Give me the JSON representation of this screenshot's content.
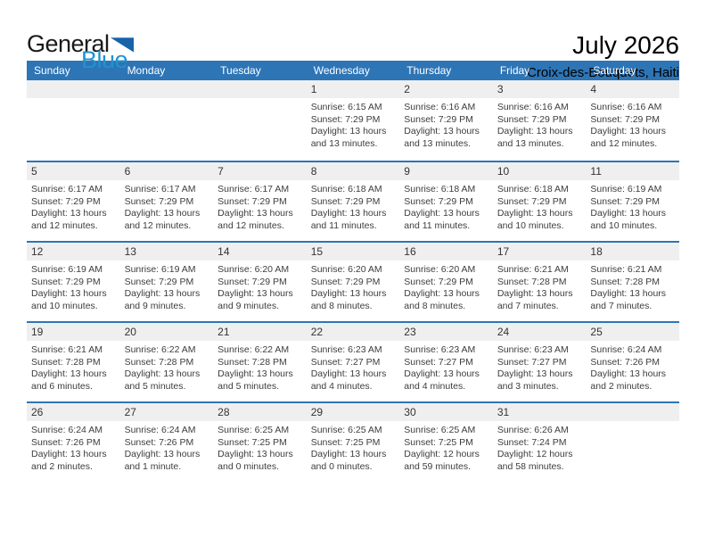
{
  "logo": {
    "part1": "General",
    "part2": "Blue",
    "triangle_icon": "flag-triangle"
  },
  "header": {
    "title": "July 2026",
    "subtitle": "Croix-des-Bouquets, Haiti"
  },
  "colors": {
    "header_blue": "#2E75B6",
    "band_gray": "#EFEFEF",
    "logo_blue": "#2191D0",
    "logo_triangle": "#1763A8"
  },
  "calendar": {
    "day_headers": [
      "Sunday",
      "Monday",
      "Tuesday",
      "Wednesday",
      "Thursday",
      "Friday",
      "Saturday"
    ],
    "weeks": [
      [
        null,
        null,
        null,
        {
          "n": "1",
          "sunrise": "Sunrise: 6:15 AM",
          "sunset": "Sunset: 7:29 PM",
          "daylight1": "Daylight: 13 hours",
          "daylight2": "and 13 minutes."
        },
        {
          "n": "2",
          "sunrise": "Sunrise: 6:16 AM",
          "sunset": "Sunset: 7:29 PM",
          "daylight1": "Daylight: 13 hours",
          "daylight2": "and 13 minutes."
        },
        {
          "n": "3",
          "sunrise": "Sunrise: 6:16 AM",
          "sunset": "Sunset: 7:29 PM",
          "daylight1": "Daylight: 13 hours",
          "daylight2": "and 13 minutes."
        },
        {
          "n": "4",
          "sunrise": "Sunrise: 6:16 AM",
          "sunset": "Sunset: 7:29 PM",
          "daylight1": "Daylight: 13 hours",
          "daylight2": "and 12 minutes."
        }
      ],
      [
        {
          "n": "5",
          "sunrise": "Sunrise: 6:17 AM",
          "sunset": "Sunset: 7:29 PM",
          "daylight1": "Daylight: 13 hours",
          "daylight2": "and 12 minutes."
        },
        {
          "n": "6",
          "sunrise": "Sunrise: 6:17 AM",
          "sunset": "Sunset: 7:29 PM",
          "daylight1": "Daylight: 13 hours",
          "daylight2": "and 12 minutes."
        },
        {
          "n": "7",
          "sunrise": "Sunrise: 6:17 AM",
          "sunset": "Sunset: 7:29 PM",
          "daylight1": "Daylight: 13 hours",
          "daylight2": "and 12 minutes."
        },
        {
          "n": "8",
          "sunrise": "Sunrise: 6:18 AM",
          "sunset": "Sunset: 7:29 PM",
          "daylight1": "Daylight: 13 hours",
          "daylight2": "and 11 minutes."
        },
        {
          "n": "9",
          "sunrise": "Sunrise: 6:18 AM",
          "sunset": "Sunset: 7:29 PM",
          "daylight1": "Daylight: 13 hours",
          "daylight2": "and 11 minutes."
        },
        {
          "n": "10",
          "sunrise": "Sunrise: 6:18 AM",
          "sunset": "Sunset: 7:29 PM",
          "daylight1": "Daylight: 13 hours",
          "daylight2": "and 10 minutes."
        },
        {
          "n": "11",
          "sunrise": "Sunrise: 6:19 AM",
          "sunset": "Sunset: 7:29 PM",
          "daylight1": "Daylight: 13 hours",
          "daylight2": "and 10 minutes."
        }
      ],
      [
        {
          "n": "12",
          "sunrise": "Sunrise: 6:19 AM",
          "sunset": "Sunset: 7:29 PM",
          "daylight1": "Daylight: 13 hours",
          "daylight2": "and 10 minutes."
        },
        {
          "n": "13",
          "sunrise": "Sunrise: 6:19 AM",
          "sunset": "Sunset: 7:29 PM",
          "daylight1": "Daylight: 13 hours",
          "daylight2": "and 9 minutes."
        },
        {
          "n": "14",
          "sunrise": "Sunrise: 6:20 AM",
          "sunset": "Sunset: 7:29 PM",
          "daylight1": "Daylight: 13 hours",
          "daylight2": "and 9 minutes."
        },
        {
          "n": "15",
          "sunrise": "Sunrise: 6:20 AM",
          "sunset": "Sunset: 7:29 PM",
          "daylight1": "Daylight: 13 hours",
          "daylight2": "and 8 minutes."
        },
        {
          "n": "16",
          "sunrise": "Sunrise: 6:20 AM",
          "sunset": "Sunset: 7:29 PM",
          "daylight1": "Daylight: 13 hours",
          "daylight2": "and 8 minutes."
        },
        {
          "n": "17",
          "sunrise": "Sunrise: 6:21 AM",
          "sunset": "Sunset: 7:28 PM",
          "daylight1": "Daylight: 13 hours",
          "daylight2": "and 7 minutes."
        },
        {
          "n": "18",
          "sunrise": "Sunrise: 6:21 AM",
          "sunset": "Sunset: 7:28 PM",
          "daylight1": "Daylight: 13 hours",
          "daylight2": "and 7 minutes."
        }
      ],
      [
        {
          "n": "19",
          "sunrise": "Sunrise: 6:21 AM",
          "sunset": "Sunset: 7:28 PM",
          "daylight1": "Daylight: 13 hours",
          "daylight2": "and 6 minutes."
        },
        {
          "n": "20",
          "sunrise": "Sunrise: 6:22 AM",
          "sunset": "Sunset: 7:28 PM",
          "daylight1": "Daylight: 13 hours",
          "daylight2": "and 5 minutes."
        },
        {
          "n": "21",
          "sunrise": "Sunrise: 6:22 AM",
          "sunset": "Sunset: 7:28 PM",
          "daylight1": "Daylight: 13 hours",
          "daylight2": "and 5 minutes."
        },
        {
          "n": "22",
          "sunrise": "Sunrise: 6:23 AM",
          "sunset": "Sunset: 7:27 PM",
          "daylight1": "Daylight: 13 hours",
          "daylight2": "and 4 minutes."
        },
        {
          "n": "23",
          "sunrise": "Sunrise: 6:23 AM",
          "sunset": "Sunset: 7:27 PM",
          "daylight1": "Daylight: 13 hours",
          "daylight2": "and 4 minutes."
        },
        {
          "n": "24",
          "sunrise": "Sunrise: 6:23 AM",
          "sunset": "Sunset: 7:27 PM",
          "daylight1": "Daylight: 13 hours",
          "daylight2": "and 3 minutes."
        },
        {
          "n": "25",
          "sunrise": "Sunrise: 6:24 AM",
          "sunset": "Sunset: 7:26 PM",
          "daylight1": "Daylight: 13 hours",
          "daylight2": "and 2 minutes."
        }
      ],
      [
        {
          "n": "26",
          "sunrise": "Sunrise: 6:24 AM",
          "sunset": "Sunset: 7:26 PM",
          "daylight1": "Daylight: 13 hours",
          "daylight2": "and 2 minutes."
        },
        {
          "n": "27",
          "sunrise": "Sunrise: 6:24 AM",
          "sunset": "Sunset: 7:26 PM",
          "daylight1": "Daylight: 13 hours",
          "daylight2": "and 1 minute."
        },
        {
          "n": "28",
          "sunrise": "Sunrise: 6:25 AM",
          "sunset": "Sunset: 7:25 PM",
          "daylight1": "Daylight: 13 hours",
          "daylight2": "and 0 minutes."
        },
        {
          "n": "29",
          "sunrise": "Sunrise: 6:25 AM",
          "sunset": "Sunset: 7:25 PM",
          "daylight1": "Daylight: 13 hours",
          "daylight2": "and 0 minutes."
        },
        {
          "n": "30",
          "sunrise": "Sunrise: 6:25 AM",
          "sunset": "Sunset: 7:25 PM",
          "daylight1": "Daylight: 12 hours",
          "daylight2": "and 59 minutes."
        },
        {
          "n": "31",
          "sunrise": "Sunrise: 6:26 AM",
          "sunset": "Sunset: 7:24 PM",
          "daylight1": "Daylight: 12 hours",
          "daylight2": "and 58 minutes."
        },
        null
      ]
    ]
  }
}
